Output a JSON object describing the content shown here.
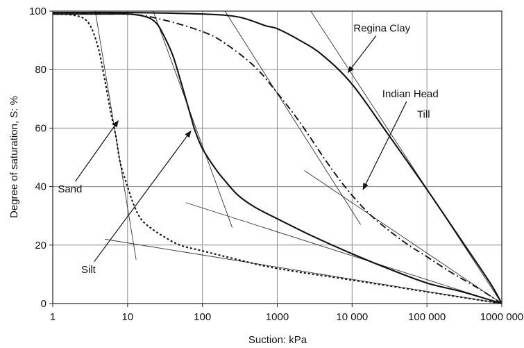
{
  "chart_data": {
    "type": "line",
    "xlabel": "Suction: kPa",
    "ylabel": "Degree of saturation, S: %",
    "x_scale": "log",
    "xlim": [
      1,
      1000000
    ],
    "ylim": [
      0,
      100
    ],
    "x_ticks": [
      1,
      10,
      100,
      1000,
      10000,
      100000,
      1000000
    ],
    "x_tick_labels": [
      "1",
      "10",
      "100",
      "1000",
      "10 000",
      "100 000",
      "1000 000"
    ],
    "y_ticks": [
      0,
      20,
      40,
      60,
      80,
      100
    ],
    "y_tick_labels": [
      "0",
      "20",
      "40",
      "60",
      "80",
      "100"
    ],
    "grid": true,
    "legend": "none",
    "series": [
      {
        "name": "Sand",
        "style": "dotted",
        "x": [
          1,
          2,
          3,
          4,
          5,
          6,
          7,
          8,
          10,
          12,
          15,
          20,
          30,
          50,
          100,
          300,
          1000,
          10000,
          100000,
          1000000
        ],
        "y": [
          99,
          98.5,
          96,
          88,
          76,
          65,
          57,
          48,
          40,
          34,
          29,
          26,
          23,
          20,
          18,
          15,
          12,
          8,
          4,
          0
        ]
      },
      {
        "name": "Silt",
        "style": "solid",
        "x": [
          1,
          5,
          10,
          15,
          20,
          25,
          30,
          40,
          50,
          60,
          70,
          80,
          100,
          150,
          200,
          300,
          500,
          1000,
          3000,
          10000,
          30000,
          100000,
          300000,
          1000000
        ],
        "y": [
          99,
          99,
          99,
          98.5,
          97.5,
          95.5,
          92,
          85,
          77,
          70,
          64,
          59,
          53,
          46,
          42,
          37,
          33,
          29,
          23,
          17,
          12,
          7,
          4,
          0
        ]
      },
      {
        "name": "Indian Head Till",
        "style": "dash-dot",
        "x": [
          1,
          10,
          30,
          100,
          200,
          500,
          1000,
          2000,
          5000,
          10000,
          20000,
          50000,
          100000,
          200000,
          500000,
          1000000
        ],
        "y": [
          99.5,
          99,
          97,
          93,
          89,
          81,
          72,
          62,
          47,
          37,
          29,
          21,
          16,
          11,
          5,
          0
        ]
      },
      {
        "name": "Regina Clay",
        "style": "solid",
        "x": [
          1,
          10,
          100,
          300,
          700,
          1000,
          2000,
          4000,
          10000,
          30000,
          100000,
          300000,
          700000,
          1000000
        ],
        "y": [
          99.5,
          99.5,
          99,
          98,
          95,
          94,
          90,
          85,
          75,
          58,
          39,
          21,
          7,
          0
        ]
      }
    ],
    "tangent_lines": [
      {
        "from": [
          3.7,
          100
        ],
        "to": [
          13,
          15
        ]
      },
      {
        "from": [
          5,
          22
        ],
        "to": [
          1000000,
          0
        ]
      },
      {
        "from": [
          22,
          100
        ],
        "to": [
          250,
          26
        ]
      },
      {
        "from": [
          60,
          34.5
        ],
        "to": [
          1000000,
          0
        ]
      },
      {
        "from": [
          200,
          100
        ],
        "to": [
          13000,
          27
        ]
      },
      {
        "from": [
          2300,
          45.5
        ],
        "to": [
          1000000,
          0
        ]
      },
      {
        "from": [
          2800,
          100
        ],
        "to": [
          1000000,
          0
        ]
      }
    ],
    "annotations": [
      {
        "text": "Regina Clay",
        "label_at": [
          25000,
          93
        ],
        "arrow_to": [
          8800,
          79
        ]
      },
      {
        "text": "Indian Head",
        "label_at": [
          60000,
          70.5
        ],
        "arrow_to": [
          14000,
          39
        ]
      },
      {
        "text": "Till",
        "label_at": [
          90000,
          63.5
        ],
        "arrow_to": null
      },
      {
        "text": "Sand",
        "label_at": [
          1.7,
          38
        ],
        "arrow_to": [
          7.5,
          62.5
        ]
      },
      {
        "text": "Silt",
        "label_at": [
          3,
          10.5
        ],
        "arrow_to": [
          70,
          59
        ]
      }
    ]
  }
}
